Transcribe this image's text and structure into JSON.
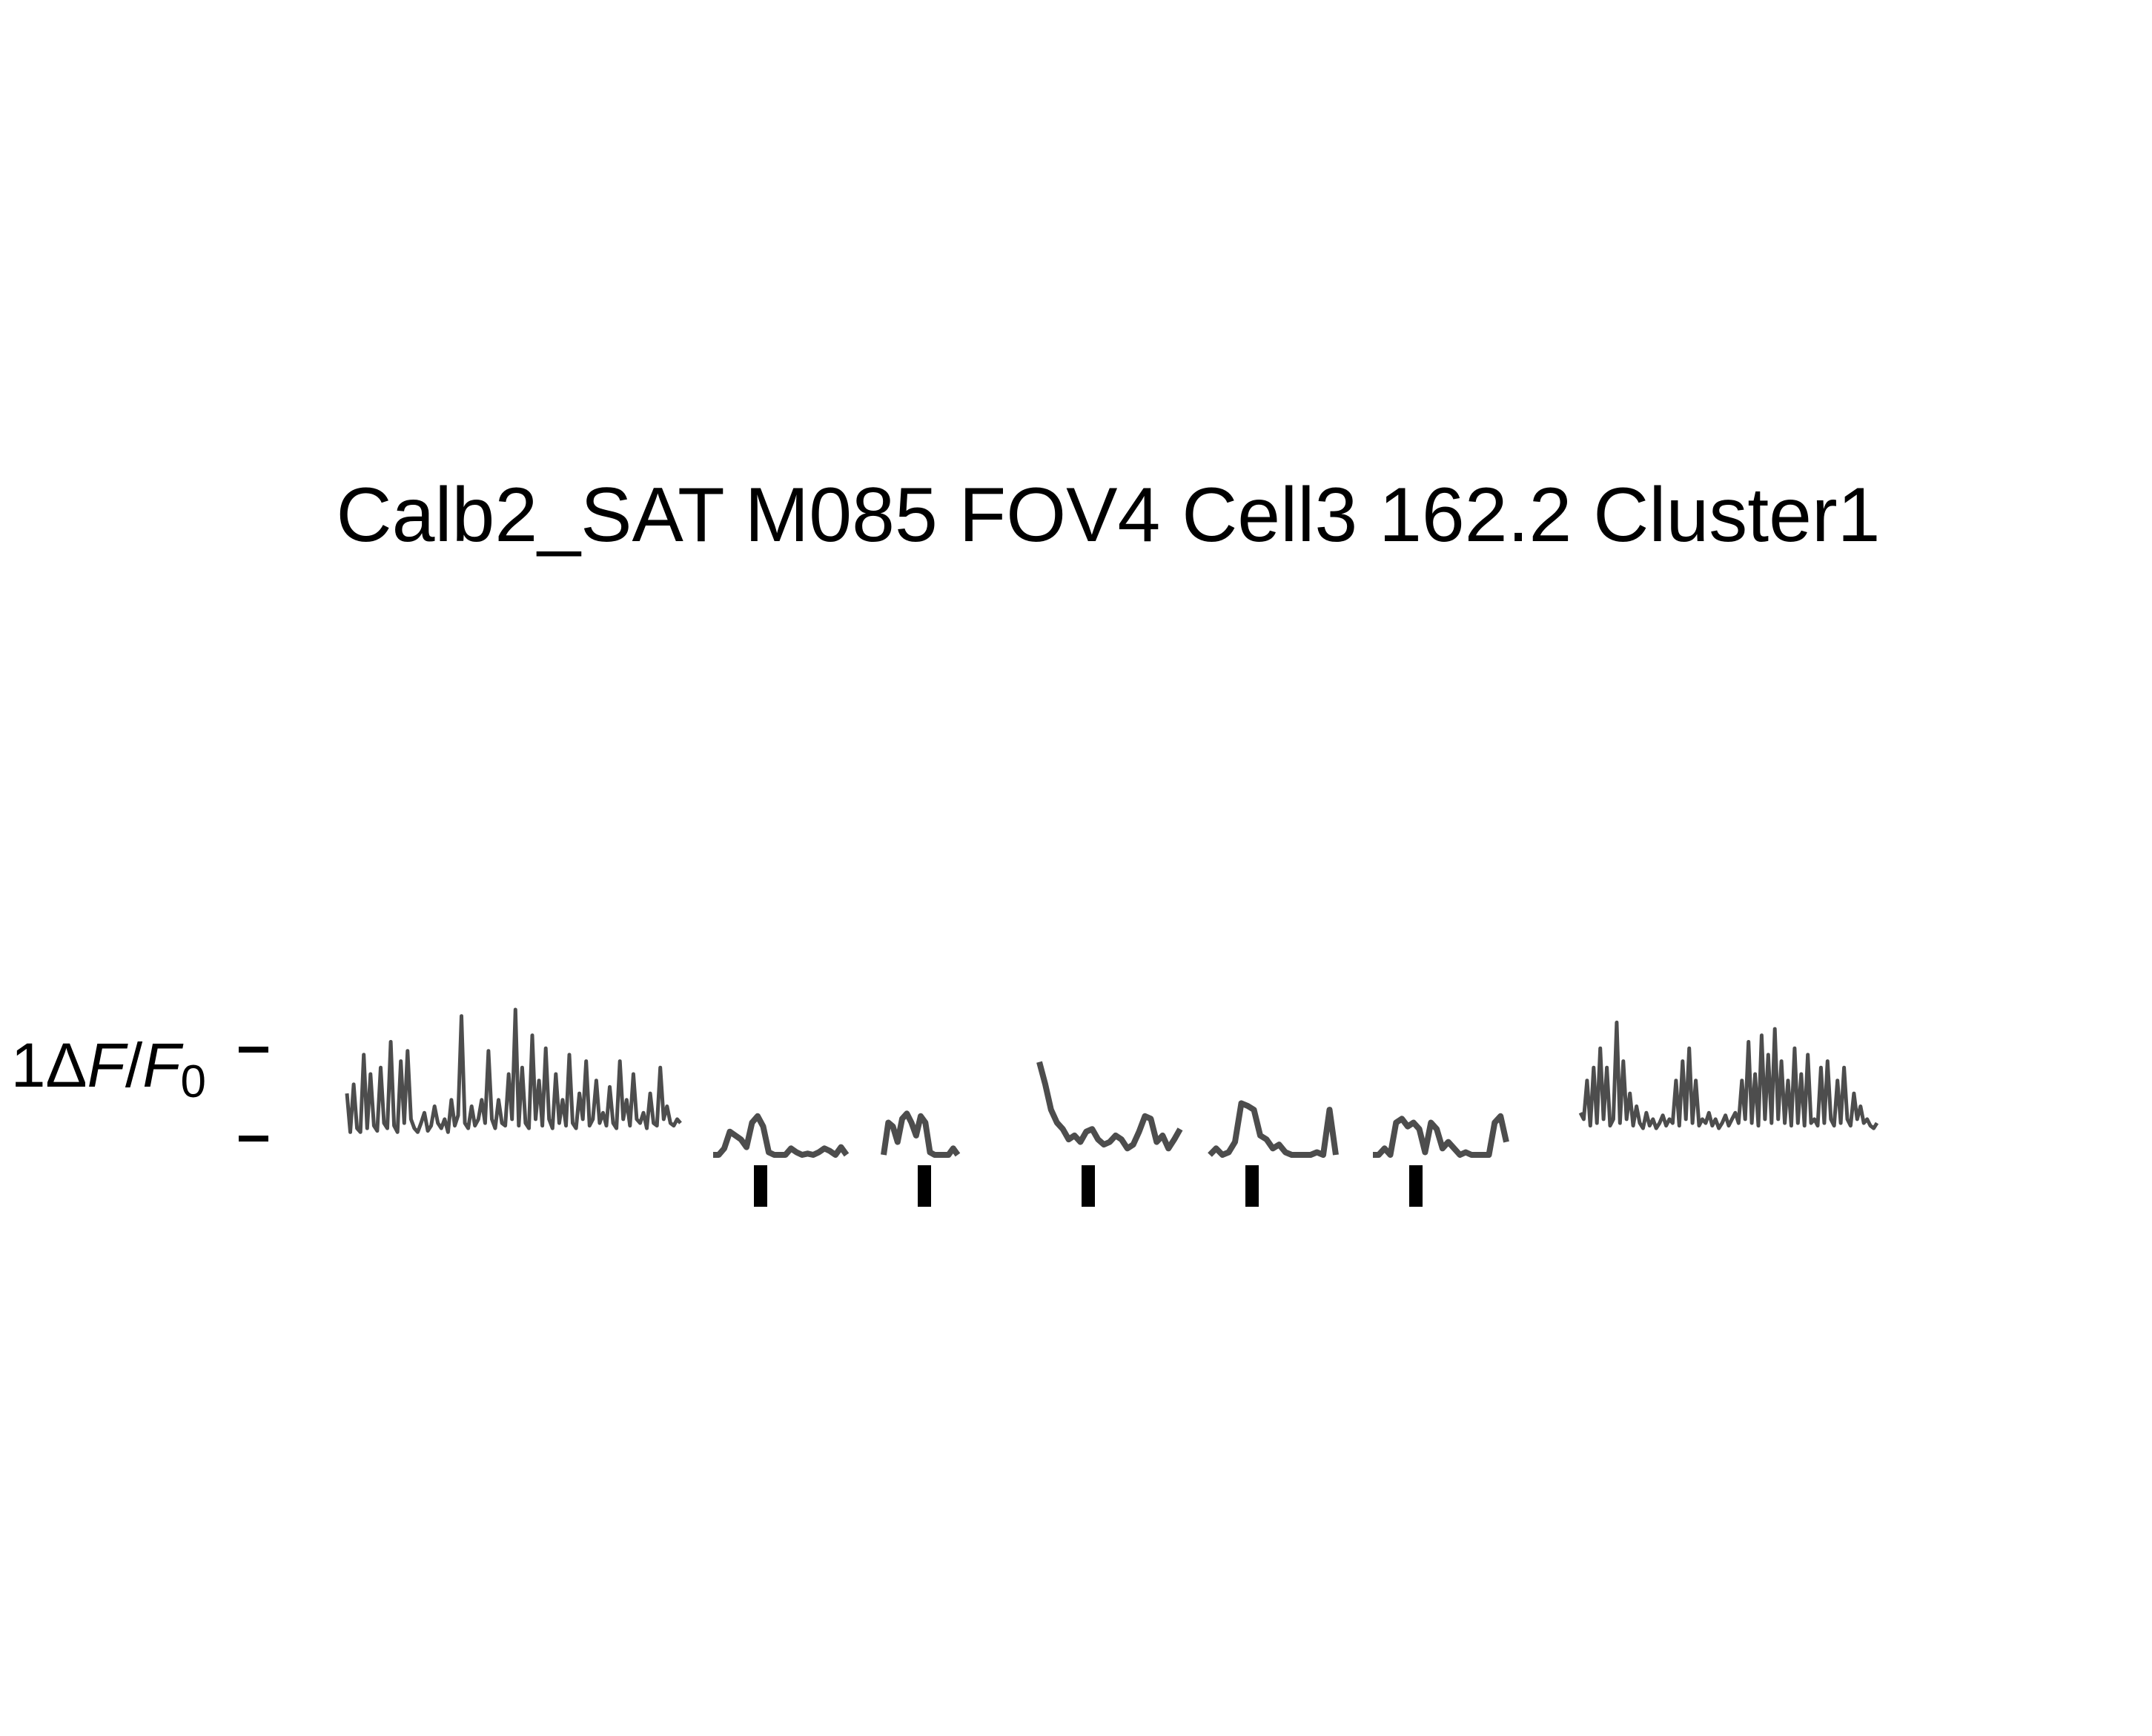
{
  "chart_data": {
    "type": "line",
    "title": "Calb2_SAT M085 FOV4 Cell3 162.2 Cluster1",
    "scale_bar_label": "1ΔF/F0",
    "colors": {
      "trace": "#4d4d4d",
      "marker": "#000000",
      "text": "#000000"
    },
    "grid": false,
    "ylim": [
      0,
      1.1
    ],
    "scale_bar": {
      "low": 0,
      "high": 1
    },
    "series": [
      {
        "segment": "baseline-pre",
        "x": [
          0,
          0.3,
          0.6,
          0.9,
          1.2,
          1.5,
          1.8,
          2.1,
          2.4,
          2.7,
          3.0,
          3.3,
          3.6,
          3.9,
          4.2,
          4.5,
          4.8,
          5.1,
          5.4,
          5.7,
          6.0,
          6.3,
          6.6,
          6.9,
          7.2,
          7.5,
          7.8,
          8.1,
          8.4,
          8.7,
          9.0,
          9.3,
          9.6,
          9.9,
          10.2,
          10.5,
          10.8,
          11.1,
          11.4,
          11.7,
          12.0,
          12.3,
          12.6,
          12.9,
          13.2,
          13.5,
          13.8,
          14.1,
          14.4,
          14.7,
          15.0,
          15.3,
          15.6,
          15.9,
          16.2,
          16.5,
          16.8,
          17.1,
          17.4,
          17.7,
          18.0,
          18.3,
          18.6,
          18.9,
          19.2,
          19.5,
          19.8,
          20.1,
          20.4,
          20.7,
          21.0,
          21.3,
          21.6,
          21.9,
          22.2,
          22.5,
          22.8,
          23.1,
          23.4,
          23.7,
          24.0,
          24.3,
          24.6,
          24.9,
          25.2,
          25.5,
          25.8,
          26.1,
          26.4,
          26.7,
          27.0,
          27.3,
          27.6,
          27.9,
          28.2,
          28.5,
          28.8,
          29.1,
          29.4,
          29.7
        ],
        "values": [
          0.35,
          0.05,
          0.42,
          0.08,
          0.05,
          0.65,
          0.08,
          0.5,
          0.1,
          0.06,
          0.55,
          0.12,
          0.08,
          0.75,
          0.1,
          0.05,
          0.6,
          0.12,
          0.68,
          0.15,
          0.08,
          0.05,
          0.12,
          0.2,
          0.06,
          0.1,
          0.25,
          0.12,
          0.08,
          0.15,
          0.05,
          0.3,
          0.1,
          0.18,
          0.95,
          0.12,
          0.08,
          0.25,
          0.1,
          0.15,
          0.3,
          0.12,
          0.68,
          0.15,
          0.08,
          0.3,
          0.12,
          0.1,
          0.5,
          0.15,
          1.0,
          0.1,
          0.55,
          0.12,
          0.08,
          0.8,
          0.15,
          0.45,
          0.1,
          0.7,
          0.15,
          0.08,
          0.5,
          0.12,
          0.3,
          0.1,
          0.65,
          0.12,
          0.08,
          0.35,
          0.15,
          0.6,
          0.1,
          0.15,
          0.45,
          0.12,
          0.2,
          0.1,
          0.4,
          0.12,
          0.08,
          0.6,
          0.15,
          0.3,
          0.1,
          0.5,
          0.15,
          0.12,
          0.2,
          0.08,
          0.35,
          0.12,
          0.1,
          0.55,
          0.15,
          0.25,
          0.12,
          0.1,
          0.15,
          0.12
        ]
      },
      {
        "segment": "trial-1",
        "x": [
          0,
          0.5,
          1,
          1.5,
          2,
          2.5,
          3,
          3.5,
          4,
          4.5,
          5,
          5.5,
          6,
          6.5,
          7,
          7.5,
          8,
          8.5,
          9,
          9.5,
          10,
          10.5,
          11,
          11.5,
          12
        ],
        "values": [
          0.0,
          0.0,
          0.05,
          0.18,
          0.15,
          0.12,
          0.06,
          0.25,
          0.3,
          0.22,
          0.02,
          0.0,
          0.0,
          0.0,
          0.05,
          0.02,
          0.0,
          0.01,
          0.0,
          0.02,
          0.05,
          0.03,
          0.0,
          0.06,
          0.0
        ]
      },
      {
        "segment": "trial-2",
        "x": [
          0,
          0.5,
          1,
          1.5,
          2,
          2.5,
          3,
          3.5,
          4,
          4.5,
          5,
          5.5,
          6,
          6.5,
          7,
          7.5,
          8
        ],
        "values": [
          0.0,
          0.25,
          0.22,
          0.1,
          0.28,
          0.32,
          0.25,
          0.15,
          0.3,
          0.25,
          0.02,
          0.0,
          0.0,
          0.0,
          0.0,
          0.05,
          0.0
        ]
      },
      {
        "segment": "trial-3",
        "x": [
          0,
          0.5,
          1,
          1.5,
          2,
          2.5,
          3,
          3.5,
          4,
          4.5,
          5,
          5.5,
          6,
          6.5,
          7,
          7.5,
          8,
          8.5,
          9,
          9.5,
          10,
          10.5,
          11,
          11.5,
          12
        ],
        "values": [
          0.72,
          0.55,
          0.35,
          0.25,
          0.2,
          0.12,
          0.15,
          0.1,
          0.18,
          0.2,
          0.12,
          0.08,
          0.1,
          0.15,
          0.12,
          0.05,
          0.08,
          0.18,
          0.3,
          0.28,
          0.1,
          0.15,
          0.05,
          0.12,
          0.2
        ]
      },
      {
        "segment": "trial-4",
        "x": [
          0,
          0.5,
          1,
          1.5,
          2,
          2.5,
          3,
          3.5,
          4,
          4.5,
          5,
          5.5,
          6,
          6.5,
          7,
          7.5,
          8,
          8.5,
          9,
          9.5,
          10
        ],
        "values": [
          0.0,
          0.05,
          0.0,
          0.02,
          0.1,
          0.4,
          0.38,
          0.35,
          0.15,
          0.12,
          0.05,
          0.08,
          0.02,
          0.0,
          0.0,
          0.0,
          0.0,
          0.02,
          0.0,
          0.35,
          0.0
        ]
      },
      {
        "segment": "trial-5",
        "x": [
          0,
          0.5,
          1,
          1.5,
          2,
          2.5,
          3,
          3.5,
          4,
          4.5,
          5,
          5.5,
          6,
          6.5,
          7,
          7.5,
          8,
          8.5,
          9,
          9.5,
          10,
          10.5,
          11,
          11.5
        ],
        "values": [
          0.0,
          0.0,
          0.05,
          0.0,
          0.25,
          0.28,
          0.22,
          0.25,
          0.2,
          0.02,
          0.25,
          0.2,
          0.05,
          0.1,
          0.05,
          0.0,
          0.02,
          0.0,
          0.0,
          0.0,
          0.0,
          0.25,
          0.3,
          0.1
        ]
      },
      {
        "segment": "baseline-post",
        "x": [
          0,
          0.3,
          0.6,
          0.9,
          1.2,
          1.5,
          1.8,
          2.1,
          2.4,
          2.7,
          3.0,
          3.3,
          3.6,
          3.9,
          4.2,
          4.5,
          4.8,
          5.1,
          5.4,
          5.7,
          6.0,
          6.3,
          6.6,
          6.9,
          7.2,
          7.5,
          7.8,
          8.1,
          8.4,
          8.7,
          9.0,
          9.3,
          9.6,
          9.9,
          10.2,
          10.5,
          10.8,
          11.1,
          11.4,
          11.7,
          12.0,
          12.3,
          12.6,
          12.9,
          13.2,
          13.5,
          13.8,
          14.1,
          14.4,
          14.7,
          15.0,
          15.3,
          15.6,
          15.9,
          16.2,
          16.5,
          16.8,
          17.1,
          17.4,
          17.7,
          18.0,
          18.3,
          18.6,
          18.9,
          19.2,
          19.5,
          19.8,
          20.1,
          20.4,
          20.7,
          21.0,
          21.3,
          21.6,
          21.9,
          22.2,
          22.5,
          22.8,
          23.1,
          23.4,
          23.7,
          24.0,
          24.3,
          24.6,
          24.9,
          25.2,
          25.5,
          25.8,
          26.1,
          26.4,
          26.7,
          27.0
        ],
        "values": [
          0.2,
          0.15,
          0.45,
          0.1,
          0.55,
          0.12,
          0.7,
          0.15,
          0.55,
          0.1,
          0.15,
          0.9,
          0.12,
          0.6,
          0.15,
          0.35,
          0.1,
          0.25,
          0.12,
          0.08,
          0.2,
          0.1,
          0.15,
          0.08,
          0.12,
          0.18,
          0.1,
          0.15,
          0.12,
          0.45,
          0.1,
          0.6,
          0.15,
          0.7,
          0.12,
          0.45,
          0.1,
          0.15,
          0.12,
          0.2,
          0.1,
          0.15,
          0.08,
          0.12,
          0.18,
          0.1,
          0.15,
          0.2,
          0.12,
          0.45,
          0.15,
          0.75,
          0.12,
          0.5,
          0.1,
          0.8,
          0.15,
          0.65,
          0.12,
          0.85,
          0.15,
          0.6,
          0.12,
          0.45,
          0.1,
          0.7,
          0.12,
          0.5,
          0.1,
          0.65,
          0.12,
          0.15,
          0.1,
          0.55,
          0.12,
          0.6,
          0.15,
          0.1,
          0.45,
          0.12,
          0.55,
          0.15,
          0.1,
          0.35,
          0.15,
          0.25,
          0.12,
          0.15,
          0.1,
          0.08,
          0.12
        ]
      }
    ],
    "events": [
      1,
      2,
      3,
      4,
      5
    ]
  }
}
